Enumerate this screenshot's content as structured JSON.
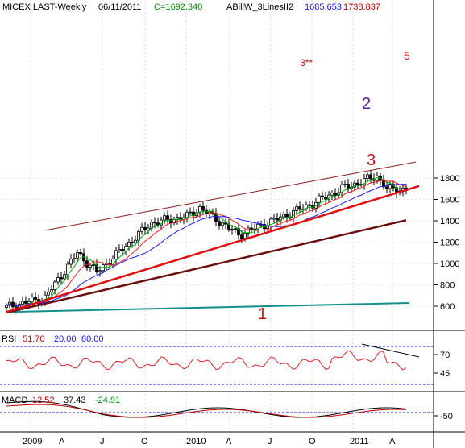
{
  "header": {
    "symbol": "MICEX LAST-Weekly",
    "date": "06/11/2011",
    "close_label": "C=1692.340",
    "indicator_name": "ABillW_3LinesII2",
    "indicator_value_1": "1685.653",
    "indicator_value_2": "1738.837"
  },
  "colors": {
    "background": "#ffffff",
    "candle": "#000000",
    "ma_fast": "#00b400",
    "ma_mid": "#ff2020",
    "ma_slow": "#1a1aff",
    "channel": "#8b1a1a",
    "trend_red": "#e01010",
    "trend_dark": "#6b0f0f",
    "trend_teal": "#13908c",
    "annotation": "#d01010",
    "annotation_blue": "#5a1aa0",
    "rsi": "#e02020",
    "rsi_levels": "#1a1aff",
    "macd": "#000000",
    "macd_signal": "#c00000"
  },
  "annotations": {
    "label_1": "1",
    "label_2": "2",
    "label_3": "3",
    "label_3_stars": "3**",
    "label_5": "5"
  },
  "rsi_panel": {
    "name": "RSI",
    "value": "51.70",
    "lower": "20.00",
    "upper": "80.00",
    "ticks": [
      "70",
      "45"
    ]
  },
  "macd_panel": {
    "name": "MACD",
    "value": "12.52",
    "signal": "37.43",
    "hist": "-24.91",
    "ticks": [
      "-50"
    ]
  },
  "x_axis": {
    "labels": [
      "2009",
      "A",
      "J",
      "O",
      "2010",
      "A",
      "J",
      "O",
      "2011",
      "A"
    ]
  },
  "chart_data": {
    "type": "candlestick",
    "title": "MICEX LAST-Weekly",
    "interval": "weekly",
    "y_range": [
      530,
      1950
    ],
    "y_ticks": [
      "600",
      "800",
      "1000",
      "1200",
      "1400",
      "1600",
      "1800"
    ],
    "x_start": "2009-01",
    "x_end": "2011-06",
    "close": 1692.34,
    "trend_lines": {
      "1": {
        "from": [
          0,
          545
        ],
        "to": [
          125,
          630
        ]
      },
      "2": {
        "from": [
          0,
          545
        ],
        "to": [
          128,
          1725
        ]
      },
      "3": {
        "from": [
          0,
          540
        ],
        "to": [
          124,
          1405
        ]
      },
      "channel_upper": {
        "from": [
          12,
          1310
        ],
        "to": [
          127,
          1950
        ]
      }
    },
    "key_closes": [
      {
        "week": 0,
        "close": 590
      },
      {
        "week": 12,
        "close": 680
      },
      {
        "week": 22,
        "close": 1100
      },
      {
        "week": 28,
        "close": 920
      },
      {
        "week": 45,
        "close": 1380
      },
      {
        "week": 56,
        "close": 1440
      },
      {
        "week": 60,
        "close": 1520
      },
      {
        "week": 72,
        "close": 1270
      },
      {
        "week": 82,
        "close": 1390
      },
      {
        "week": 95,
        "close": 1560
      },
      {
        "week": 104,
        "close": 1700
      },
      {
        "week": 115,
        "close": 1820
      },
      {
        "week": 118,
        "close": 1700
      },
      {
        "week": 124,
        "close": 1692
      }
    ]
  }
}
